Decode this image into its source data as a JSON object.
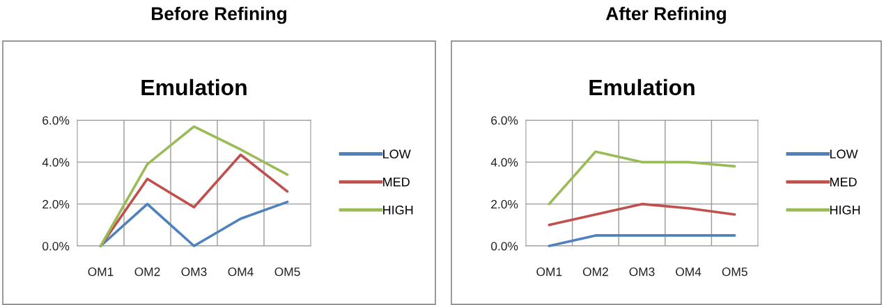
{
  "chart_data": [
    {
      "type": "line",
      "title": "Before Refining",
      "subtitle": "Emulation",
      "categories": [
        "OM1",
        "OM2",
        "OM3",
        "OM4",
        "OM5"
      ],
      "series": [
        {
          "name": "LOW",
          "color": "#4f81bd",
          "values": [
            0,
            2.0,
            0,
            1.3,
            2.1
          ]
        },
        {
          "name": "MED",
          "color": "#c0504d",
          "values": [
            0,
            3.2,
            1.85,
            4.35,
            2.6
          ]
        },
        {
          "name": "HIGH",
          "color": "#9bbb59",
          "values": [
            0,
            3.9,
            5.7,
            4.6,
            3.4
          ]
        }
      ],
      "ylim": [
        0,
        6
      ],
      "yticks": [
        {
          "value": 0,
          "label": "0.0%"
        },
        {
          "value": 2,
          "label": "2.0%"
        },
        {
          "value": 4,
          "label": "4.0%"
        },
        {
          "value": 6,
          "label": "6.0%"
        }
      ],
      "grid": true,
      "legend": "right",
      "marker": "none",
      "line_style": "solid"
    },
    {
      "type": "line",
      "title": "After Refining",
      "subtitle": "Emulation",
      "categories": [
        "OM1",
        "OM2",
        "OM3",
        "OM4",
        "OM5"
      ],
      "series": [
        {
          "name": "LOW",
          "color": "#4f81bd",
          "values": [
            0,
            0.5,
            0.5,
            0.5,
            0.5
          ]
        },
        {
          "name": "MED",
          "color": "#c0504d",
          "values": [
            1.0,
            1.5,
            2.0,
            1.8,
            1.5
          ]
        },
        {
          "name": "HIGH",
          "color": "#9bbb59",
          "values": [
            2.0,
            4.5,
            4.0,
            4.0,
            3.8
          ]
        }
      ],
      "ylim": [
        0,
        6
      ],
      "yticks": [
        {
          "value": 0,
          "label": "0.0%"
        },
        {
          "value": 2,
          "label": "2.0%"
        },
        {
          "value": 4,
          "label": "4.0%"
        },
        {
          "value": 6,
          "label": "6.0%"
        }
      ],
      "grid": true,
      "legend": "right",
      "marker": "none",
      "line_style": "solid"
    }
  ]
}
